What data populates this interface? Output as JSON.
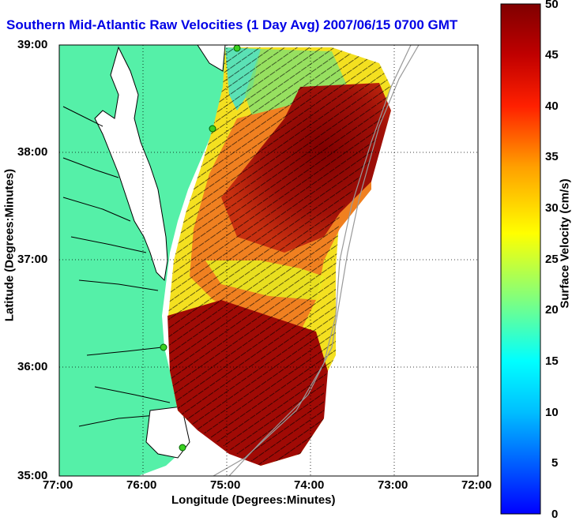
{
  "map": {
    "title": "Southern Mid-Atlantic Raw Velocities (1 Day Avg) 2007/06/15 0700 GMT",
    "xlabel": "Longitude (Degrees:Minutes)",
    "ylabel": "Latitude (Degrees:Minutes)",
    "x_ticks": [
      "77:00",
      "76:00",
      "75:00",
      "74:00",
      "73:00",
      "72:00"
    ],
    "y_ticks": [
      "39:00",
      "38:00",
      "37:00",
      "36:00",
      "35:00"
    ],
    "lon_range": [
      -77,
      -72
    ],
    "lat_range": [
      35,
      39
    ],
    "land_color": "#55f0a8",
    "water_color": "#ffffff",
    "grid": "dotted",
    "station_markers": "green-dots"
  },
  "colorbar": {
    "label": "Surface Velocity (cm/s)",
    "ticks": [
      "50",
      "45",
      "40",
      "35",
      "30",
      "25",
      "20",
      "15",
      "10",
      "5",
      "0"
    ],
    "range": [
      0,
      50
    ],
    "colormap": [
      "#0000ff",
      "#00a0ff",
      "#00ffff",
      "#7fff7f",
      "#ffff00",
      "#ffa000",
      "#ff2000",
      "#c00000",
      "#800000"
    ]
  }
}
